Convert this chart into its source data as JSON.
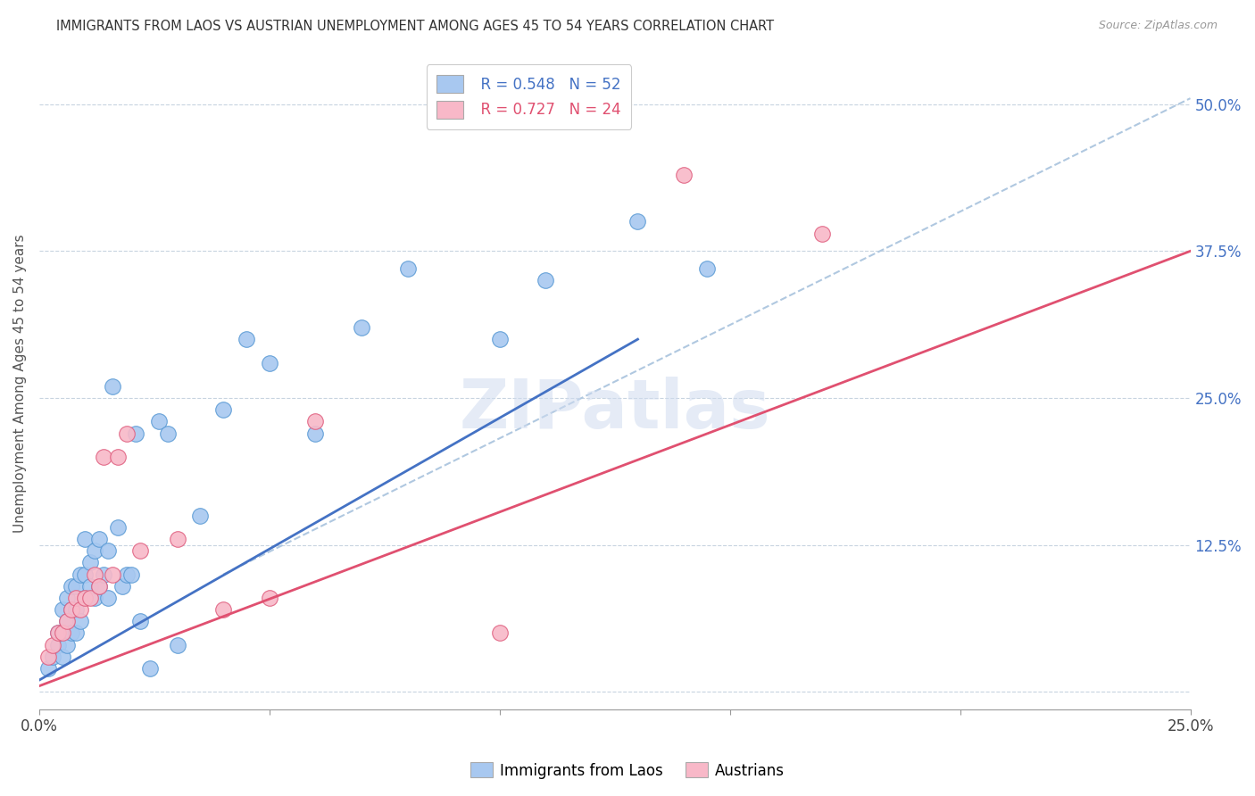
{
  "title": "IMMIGRANTS FROM LAOS VS AUSTRIAN UNEMPLOYMENT AMONG AGES 45 TO 54 YEARS CORRELATION CHART",
  "source": "Source: ZipAtlas.com",
  "ylabel": "Unemployment Among Ages 45 to 54 years",
  "xlim": [
    0.0,
    0.25
  ],
  "ylim": [
    -0.015,
    0.54
  ],
  "yticks_right": [
    0.0,
    0.125,
    0.25,
    0.375,
    0.5
  ],
  "ytick_right_labels": [
    "",
    "12.5%",
    "25.0%",
    "37.5%",
    "50.0%"
  ],
  "color_blue": "#A8C8F0",
  "color_pink": "#F8B8C8",
  "color_blue_edge": "#5B9BD5",
  "color_pink_edge": "#E06080",
  "color_line_blue": "#4472C4",
  "color_line_pink": "#E05070",
  "color_line_dash": "#B0C8E0",
  "watermark": "ZIPatlas",
  "blue_scatter_x": [
    0.002,
    0.003,
    0.004,
    0.004,
    0.005,
    0.005,
    0.005,
    0.006,
    0.006,
    0.006,
    0.007,
    0.007,
    0.007,
    0.008,
    0.008,
    0.008,
    0.009,
    0.009,
    0.01,
    0.01,
    0.01,
    0.011,
    0.011,
    0.012,
    0.012,
    0.013,
    0.013,
    0.014,
    0.015,
    0.015,
    0.016,
    0.017,
    0.018,
    0.019,
    0.02,
    0.021,
    0.022,
    0.024,
    0.026,
    0.028,
    0.03,
    0.035,
    0.04,
    0.045,
    0.05,
    0.06,
    0.07,
    0.08,
    0.1,
    0.11,
    0.13,
    0.145
  ],
  "blue_scatter_y": [
    0.02,
    0.03,
    0.04,
    0.05,
    0.03,
    0.05,
    0.07,
    0.04,
    0.06,
    0.08,
    0.05,
    0.07,
    0.09,
    0.05,
    0.07,
    0.09,
    0.06,
    0.1,
    0.08,
    0.1,
    0.13,
    0.09,
    0.11,
    0.08,
    0.12,
    0.09,
    0.13,
    0.1,
    0.08,
    0.12,
    0.26,
    0.14,
    0.09,
    0.1,
    0.1,
    0.22,
    0.06,
    0.02,
    0.23,
    0.22,
    0.04,
    0.15,
    0.24,
    0.3,
    0.28,
    0.22,
    0.31,
    0.36,
    0.3,
    0.35,
    0.4,
    0.36
  ],
  "pink_scatter_x": [
    0.002,
    0.003,
    0.004,
    0.005,
    0.006,
    0.007,
    0.008,
    0.009,
    0.01,
    0.011,
    0.012,
    0.013,
    0.014,
    0.016,
    0.017,
    0.019,
    0.022,
    0.03,
    0.04,
    0.05,
    0.06,
    0.1,
    0.14,
    0.17
  ],
  "pink_scatter_y": [
    0.03,
    0.04,
    0.05,
    0.05,
    0.06,
    0.07,
    0.08,
    0.07,
    0.08,
    0.08,
    0.1,
    0.09,
    0.2,
    0.1,
    0.2,
    0.22,
    0.12,
    0.13,
    0.07,
    0.08,
    0.23,
    0.05,
    0.44,
    0.39
  ],
  "blue_line_x": [
    0.0,
    0.13
  ],
  "blue_line_y": [
    0.01,
    0.3
  ],
  "pink_line_x": [
    0.0,
    0.25
  ],
  "pink_line_y": [
    0.005,
    0.375
  ],
  "dash_line_x": [
    0.04,
    0.25
  ],
  "dash_line_y": [
    0.1,
    0.505
  ],
  "figsize": [
    14.06,
    8.92
  ],
  "dpi": 100
}
